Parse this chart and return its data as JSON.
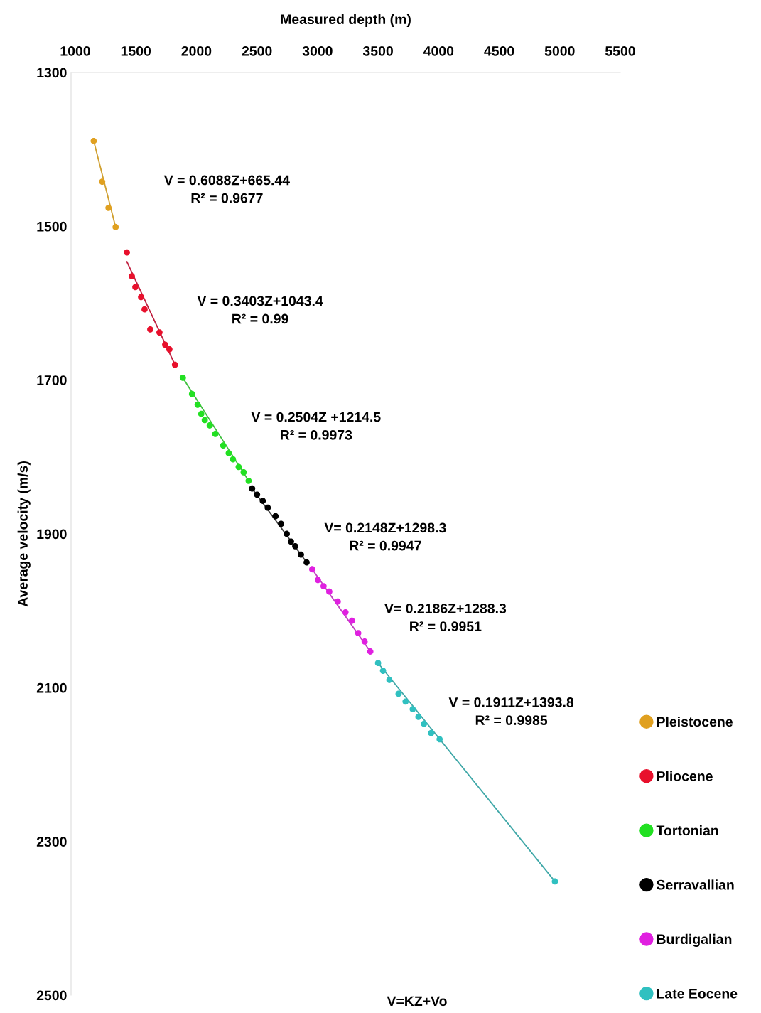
{
  "chart_data": {
    "type": "scatter",
    "xlabel": "Measured depth (m)",
    "ylabel": "Average velocity (m/s)",
    "xlim": [
      965,
      5500
    ],
    "xticks": [
      1000,
      1500,
      2000,
      2500,
      3000,
      3500,
      4000,
      4500,
      5000,
      5500
    ],
    "ylim": [
      2500,
      1300
    ],
    "yticks": [
      1300,
      1500,
      1700,
      1900,
      2100,
      2300,
      2500
    ],
    "grid": false,
    "legend": "bottom right",
    "marker": "circle",
    "series": [
      {
        "name": "Pleistocene",
        "color": "#e0a020",
        "x": [
          1152,
          1222,
          1274,
          1333
        ],
        "values": [
          1389,
          1442,
          1476,
          1501
        ]
      },
      {
        "name": "Pliocene",
        "color": "#e8102c",
        "x": [
          1426,
          1467,
          1496,
          1543,
          1572,
          1619,
          1695,
          1742,
          1777,
          1823
        ],
        "values": [
          1534,
          1565,
          1579,
          1592,
          1608,
          1634,
          1638,
          1654,
          1660,
          1680
        ]
      },
      {
        "name": "Tortonian",
        "color": "#22e022",
        "x": [
          1888,
          1964,
          2010,
          2040,
          2069,
          2110,
          2156,
          2221,
          2267,
          2302,
          2349,
          2390,
          2431
        ],
        "values": [
          1697,
          1718,
          1732,
          1744,
          1752,
          1759,
          1770,
          1785,
          1795,
          1803,
          1813,
          1820,
          1831
        ]
      },
      {
        "name": "Serravallian",
        "color": "#000000",
        "x": [
          2460,
          2501,
          2548,
          2589,
          2653,
          2699,
          2746,
          2781,
          2816,
          2863,
          2910
        ],
        "values": [
          1841,
          1849,
          1857,
          1866,
          1877,
          1887,
          1900,
          1910,
          1916,
          1927,
          1937
        ]
      },
      {
        "name": "Burdigalian",
        "color": "#e020e0",
        "x": [
          2956,
          3003,
          3050,
          3097,
          3167,
          3231,
          3284,
          3336,
          3389,
          3436
        ],
        "values": [
          1946,
          1960,
          1968,
          1975,
          1988,
          2002,
          2013,
          2029,
          2040,
          2053
        ]
      },
      {
        "name": "Late Eocene",
        "color": "#30c0c0",
        "x": [
          3500,
          3541,
          3593,
          3669,
          3727,
          3786,
          3833,
          3879,
          3938,
          4008,
          4960
        ],
        "values": [
          2068,
          2078,
          2090,
          2108,
          2118,
          2128,
          2138,
          2147,
          2159,
          2167,
          2352
        ]
      },
      {
        "type": "line",
        "marker": "none",
        "color": "#d0a030",
        "x": [
          1152,
          1333
        ],
        "values": [
          1389,
          1501
        ]
      },
      {
        "type": "line",
        "marker": "none",
        "color": "#c02040",
        "x": [
          1426,
          1823
        ],
        "values": [
          1546,
          1680
        ]
      },
      {
        "type": "line",
        "marker": "none",
        "color": "#40c040",
        "x": [
          1888,
          2431
        ],
        "values": [
          1697,
          1831
        ]
      },
      {
        "type": "line",
        "marker": "none",
        "color": "#404040",
        "x": [
          2460,
          2910
        ],
        "values": [
          1841,
          1937
        ]
      },
      {
        "type": "line",
        "marker": "none",
        "color": "#c040c0",
        "x": [
          2956,
          3436
        ],
        "values": [
          1946,
          2053
        ]
      },
      {
        "type": "line",
        "marker": "none",
        "color": "#40a8a8",
        "x": [
          3500,
          4960
        ],
        "values": [
          2068,
          2352
        ]
      }
    ],
    "annotations": [
      "V = 0.6088Z+665.44\nR² = 0.9677",
      "V = 0.3403Z+1043.4\nR² = 0.99",
      "V = 0.2504Z +1214.5\nR² = 0.9973",
      "V= 0.2148Z+1298.3\nR² = 0.9947",
      "V= 0.2186Z+1288.3\nR² = 0.9951",
      "V = 0.1911Z+1393.8\nR² = 0.9985",
      "V=KZ+Vo"
    ]
  }
}
